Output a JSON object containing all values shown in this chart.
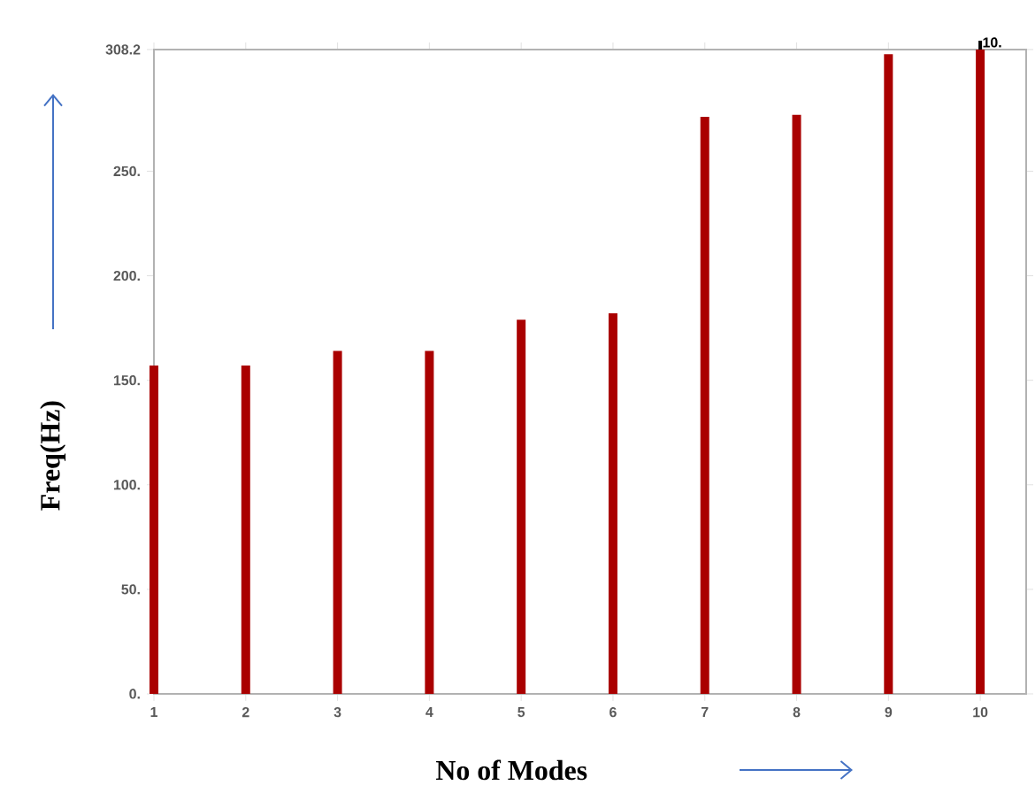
{
  "chart_data": {
    "type": "bar",
    "xlabel": "No of Modes",
    "ylabel": "Freq(Hz)",
    "x": [
      1,
      2,
      3,
      4,
      5,
      6,
      7,
      8,
      9,
      10
    ],
    "values": [
      157,
      157,
      164,
      164,
      179,
      182,
      276,
      277,
      306,
      308.2
    ],
    "color": "#aa0000",
    "xlim": [
      1,
      10.5
    ],
    "xticks": [
      1,
      2,
      3,
      4,
      5,
      6,
      7,
      8,
      9,
      10
    ],
    "ylim": [
      0,
      308.2
    ],
    "yticks": [
      {
        "value": 0,
        "label": "0."
      },
      {
        "value": 50,
        "label": "50."
      },
      {
        "value": 100,
        "label": "100."
      },
      {
        "value": 150,
        "label": "150."
      },
      {
        "value": 200,
        "label": "200."
      },
      {
        "value": 250,
        "label": "250."
      },
      {
        "value": 308.2,
        "label": "308.2"
      }
    ],
    "annotations": [
      {
        "text": "10.",
        "x": 10,
        "y": 308.2
      }
    ],
    "grid": false
  }
}
